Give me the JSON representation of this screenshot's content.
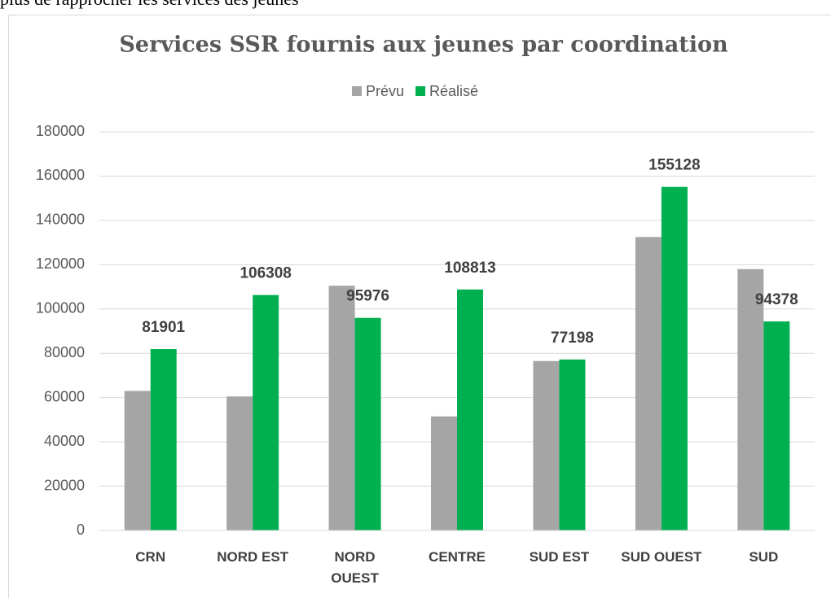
{
  "document_text": "plus de rapprocher les services des jeunes",
  "chart_data": {
    "type": "bar",
    "title": "Services SSR fournis aux jeunes par coordination",
    "categories": [
      "CRN",
      "NORD EST",
      "NORD OUEST",
      "CENTRE",
      "SUD EST",
      "SUD OUEST",
      "SUD"
    ],
    "series": [
      {
        "name": "Prévu",
        "color": "#a5a5a5",
        "values": [
          63000,
          60500,
          110500,
          51500,
          76500,
          132500,
          118000
        ]
      },
      {
        "name": "Réalisé",
        "color": "#00b050",
        "values": [
          81901,
          106308,
          95976,
          108813,
          77198,
          155128,
          94378
        ],
        "labeled": true
      }
    ],
    "ylim": [
      0,
      180000
    ],
    "yticks": [
      0,
      20000,
      40000,
      60000,
      80000,
      100000,
      120000,
      140000,
      160000,
      180000
    ],
    "grid": true,
    "legend": "top"
  }
}
